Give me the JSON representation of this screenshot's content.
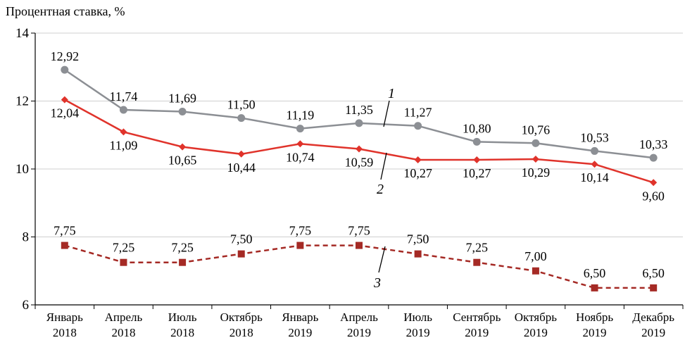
{
  "chart_data": {
    "type": "line",
    "ylabel": "Процентная ставка, %",
    "ylim": [
      6,
      14
    ],
    "yticks": [
      6,
      8,
      10,
      12,
      14
    ],
    "grid": true,
    "categories": [
      [
        "Январь",
        "2018"
      ],
      [
        "Апрель",
        "2018"
      ],
      [
        "Июль",
        "2018"
      ],
      [
        "Октябрь",
        "2018"
      ],
      [
        "Январь",
        "2019"
      ],
      [
        "Апрель",
        "2019"
      ],
      [
        "Июль",
        "2019"
      ],
      [
        "Сентябрь",
        "2019"
      ],
      [
        "Октябрь",
        "2019"
      ],
      [
        "Ноябрь",
        "2019"
      ],
      [
        "Декабрь",
        "2019"
      ]
    ],
    "series": [
      {
        "name": "1",
        "color": "#8c8f94",
        "marker": "circle",
        "dashed": false,
        "values": [
          12.92,
          11.74,
          11.69,
          11.5,
          11.19,
          11.35,
          11.27,
          10.8,
          10.76,
          10.53,
          10.33
        ],
        "labels": [
          "12,92",
          "11,74",
          "11,69",
          "11,50",
          "11,19",
          "11,35",
          "11,27",
          "10,80",
          "10,76",
          "10,53",
          "10,33"
        ]
      },
      {
        "name": "2",
        "color": "#e0332b",
        "marker": "diamond",
        "dashed": false,
        "values": [
          12.04,
          11.09,
          10.65,
          10.44,
          10.74,
          10.59,
          10.27,
          10.27,
          10.29,
          10.14,
          9.6
        ],
        "labels": [
          "12,04",
          "11,09",
          "10,65",
          "10,44",
          "10,74",
          "10,59",
          "10,27",
          "10,27",
          "10,29",
          "10,14",
          "9,60"
        ]
      },
      {
        "name": "3",
        "color": "#a52a25",
        "marker": "square",
        "dashed": true,
        "values": [
          7.75,
          7.25,
          7.25,
          7.5,
          7.75,
          7.75,
          7.5,
          7.25,
          7.0,
          6.5,
          6.5
        ],
        "labels": [
          "7,75",
          "7,25",
          "7,25",
          "7,50",
          "7,75",
          "7,75",
          "7,50",
          "7,25",
          "7,00",
          "6,50",
          "6,50"
        ]
      }
    ],
    "series_markers": [
      "1",
      "2",
      "3"
    ]
  }
}
